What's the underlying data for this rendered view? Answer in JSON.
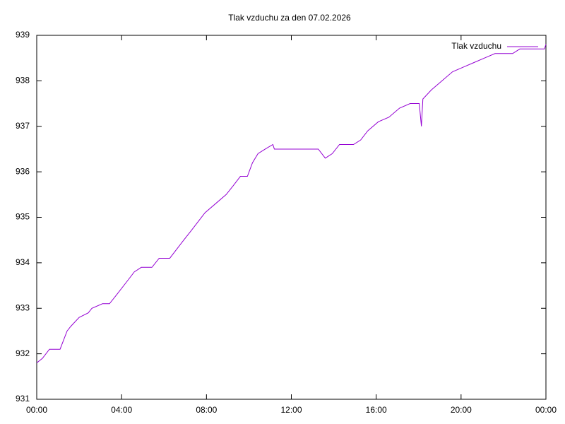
{
  "chart_data": {
    "type": "line",
    "title": "Tlak vzduchu za den 07.02.2026",
    "x": [
      0,
      0.27,
      0.6,
      1.1,
      1.43,
      1.6,
      2.0,
      2.43,
      2.6,
      3.1,
      3.43,
      3.77,
      4.27,
      4.6,
      4.93,
      5.43,
      5.77,
      6.27,
      6.6,
      6.93,
      7.27,
      7.6,
      7.93,
      8.43,
      8.93,
      9.27,
      9.6,
      9.93,
      10.17,
      10.43,
      10.77,
      11.13,
      11.2,
      13.27,
      13.6,
      13.93,
      14.27,
      14.93,
      15.27,
      15.6,
      16.1,
      16.6,
      17.1,
      17.6,
      18.03,
      18.13,
      18.2,
      18.6,
      19.1,
      19.6,
      20.1,
      20.6,
      21.1,
      21.6,
      22.1,
      22.43,
      22.77,
      23.93,
      24.0
    ],
    "series": [
      {
        "name": "Tlak vzduchu",
        "color": "#9400d3",
        "values": [
          931.8,
          931.9,
          932.1,
          932.1,
          932.5,
          932.6,
          932.8,
          932.9,
          933.0,
          933.1,
          933.1,
          933.3,
          933.6,
          933.8,
          933.9,
          933.9,
          934.1,
          934.1,
          934.3,
          934.5,
          934.7,
          934.9,
          935.1,
          935.3,
          935.5,
          935.7,
          935.9,
          935.9,
          936.2,
          936.4,
          936.5,
          936.6,
          936.5,
          936.5,
          936.3,
          936.4,
          936.6,
          936.6,
          936.7,
          936.9,
          937.1,
          937.2,
          937.4,
          937.5,
          937.5,
          937.0,
          937.6,
          937.8,
          938.0,
          938.2,
          938.3,
          938.4,
          938.5,
          938.6,
          938.6,
          938.6,
          938.7,
          938.7,
          938.8
        ]
      }
    ],
    "xlim": [
      0,
      24
    ],
    "xticks": [
      {
        "value": 0,
        "label": "00:00"
      },
      {
        "value": 4,
        "label": "04:00"
      },
      {
        "value": 8,
        "label": "08:00"
      },
      {
        "value": 12,
        "label": "12:00"
      },
      {
        "value": 16,
        "label": "16:00"
      },
      {
        "value": 20,
        "label": "20:00"
      },
      {
        "value": 24,
        "label": "00:00"
      }
    ],
    "ylim": [
      931,
      939
    ],
    "yticks": [
      931,
      932,
      933,
      934,
      935,
      936,
      937,
      938,
      939
    ],
    "grid": false,
    "legend": "top-right"
  }
}
